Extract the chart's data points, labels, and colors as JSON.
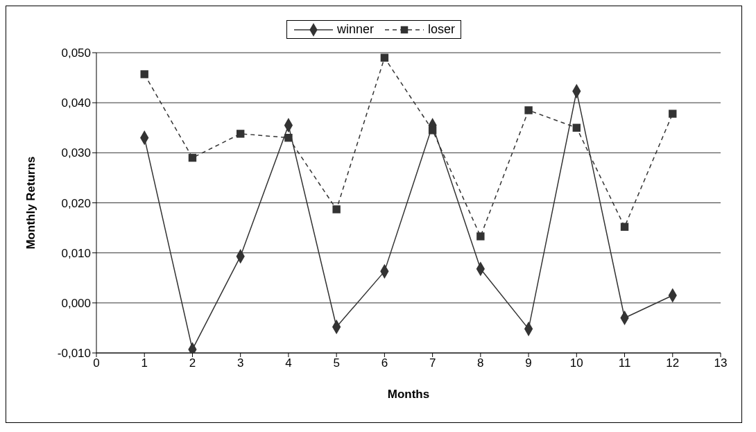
{
  "chart_data": {
    "type": "line",
    "xlabel": "Months",
    "ylabel": "Monthly Returns",
    "x": [
      1,
      2,
      3,
      4,
      5,
      6,
      7,
      8,
      9,
      10,
      11,
      12
    ],
    "series": [
      {
        "name": "winner",
        "color": "#333333",
        "marker": "diamond",
        "line_style": "solid",
        "values": [
          0.033,
          -0.0093,
          0.0093,
          0.0355,
          -0.0048,
          0.0063,
          0.0355,
          0.0068,
          -0.0052,
          0.0423,
          -0.003,
          0.0015
        ]
      },
      {
        "name": "loser",
        "color": "#333333",
        "marker": "square",
        "line_style": "dashed",
        "values": [
          0.0457,
          0.029,
          0.0338,
          0.033,
          0.0187,
          0.049,
          0.0345,
          0.0133,
          0.0385,
          0.035,
          0.0152,
          0.0378
        ]
      }
    ],
    "xlim": [
      0,
      13
    ],
    "xticks": [
      0,
      1,
      2,
      3,
      4,
      5,
      6,
      7,
      8,
      9,
      10,
      11,
      12,
      13
    ],
    "ylim": [
      -0.01,
      0.05
    ],
    "yticks": [
      {
        "value": -0.01,
        "label": "-0,010"
      },
      {
        "value": 0,
        "label": "0,000"
      },
      {
        "value": 0.01,
        "label": "0,010"
      },
      {
        "value": 0.02,
        "label": "0,020"
      },
      {
        "value": 0.03,
        "label": "0,030"
      },
      {
        "value": 0.04,
        "label": "0,040"
      },
      {
        "value": 0.05,
        "label": "0,050"
      }
    ],
    "grid": "y",
    "legend": "top"
  }
}
